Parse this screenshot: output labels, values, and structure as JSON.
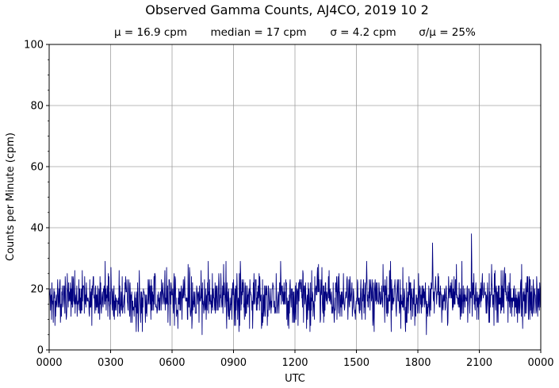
{
  "chart_data": {
    "type": "line",
    "title": "Observed Gamma Counts, AJ4CO, 2019 10 2",
    "stats": [
      "μ = 16.9 cpm",
      "median = 17 cpm",
      "σ = 4.2 cpm",
      "σ/μ = 25%"
    ],
    "xlabel": "UTC",
    "ylabel": "Counts per Minute (cpm)",
    "xlim": [
      0,
      1440
    ],
    "ylim": [
      0,
      100
    ],
    "x_ticks": [
      0,
      180,
      360,
      540,
      720,
      900,
      1080,
      1260,
      1440
    ],
    "x_tick_labels": [
      "0000",
      "0300",
      "0600",
      "0900",
      "1200",
      "1500",
      "1800",
      "2100",
      "0000"
    ],
    "y_ticks": [
      0,
      20,
      40,
      60,
      80,
      100
    ],
    "y_tick_labels": [
      "0",
      "20",
      "40",
      "60",
      "80",
      "100"
    ],
    "grid": true,
    "line_color": "#000080",
    "grid_color": "#a0a0a0",
    "series": [
      {
        "mean": 16.9,
        "sd": 4.2,
        "sample_interval_min": 1,
        "notable_points": [
          {
            "x": 1123,
            "y": 35
          },
          {
            "x": 1124,
            "y": 27
          },
          {
            "x": 1237,
            "y": 38
          },
          {
            "x": 1105,
            "y": 5
          },
          {
            "x": 448,
            "y": 5
          },
          {
            "x": 36,
            "y": 11
          },
          {
            "x": 273,
            "y": 6
          },
          {
            "x": 1387,
            "y": 7
          }
        ]
      }
    ]
  }
}
